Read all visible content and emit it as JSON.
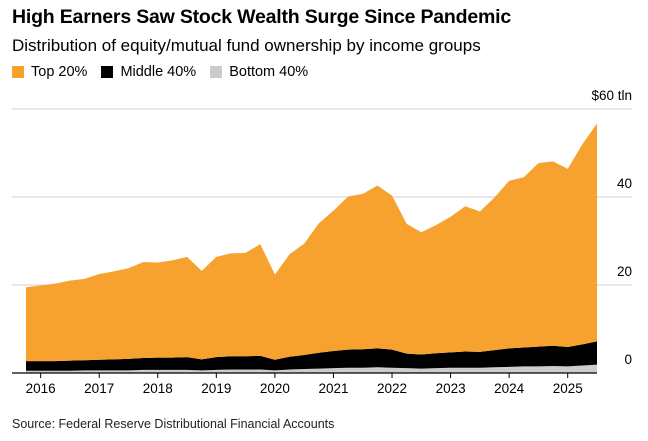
{
  "chart_data": {
    "type": "area",
    "stacked": true,
    "title": "High Earners Saw Stock Wealth Surge Since Pandemic",
    "subtitle": "Distribution of equity/mutual fund ownership by income groups",
    "source": "Source: Federal Reserve Distributional Financial Accounts",
    "y_unit_label": "$60 tln",
    "ylim": [
      0,
      60
    ],
    "y_ticks": [
      {
        "value": 0,
        "label": "0"
      },
      {
        "value": 20,
        "label": "20"
      },
      {
        "value": 40,
        "label": "40"
      },
      {
        "value": 60,
        "label": "$60 tln"
      }
    ],
    "x_ticks": [
      {
        "value": 2016,
        "label": "2016"
      },
      {
        "value": 2017,
        "label": "2017"
      },
      {
        "value": 2018,
        "label": "2018"
      },
      {
        "value": 2019,
        "label": "2019"
      },
      {
        "value": 2020,
        "label": "2020"
      },
      {
        "value": 2021,
        "label": "2021"
      },
      {
        "value": 2022,
        "label": "2022"
      },
      {
        "value": 2023,
        "label": "2023"
      },
      {
        "value": 2024,
        "label": "2024"
      },
      {
        "value": 2025,
        "label": "2025"
      }
    ],
    "xlim": [
      2015.5,
      2025.75
    ],
    "x": [
      2015.75,
      2016.0,
      2016.25,
      2016.5,
      2016.75,
      2017.0,
      2017.25,
      2017.5,
      2017.75,
      2018.0,
      2018.25,
      2018.5,
      2018.75,
      2019.0,
      2019.25,
      2019.5,
      2019.75,
      2020.0,
      2020.25,
      2020.5,
      2020.75,
      2021.0,
      2021.25,
      2021.5,
      2021.75,
      2022.0,
      2022.25,
      2022.5,
      2022.75,
      2023.0,
      2023.25,
      2023.5,
      2023.75,
      2024.0,
      2024.25,
      2024.5,
      2024.75,
      2025.0,
      2025.25,
      2025.5
    ],
    "series": [
      {
        "name": "Bottom 40%",
        "color": "#cccccc",
        "values": [
          0.5,
          0.5,
          0.5,
          0.5,
          0.6,
          0.6,
          0.6,
          0.6,
          0.7,
          0.7,
          0.7,
          0.7,
          0.6,
          0.7,
          0.8,
          0.8,
          0.8,
          0.6,
          0.8,
          0.9,
          1.0,
          1.1,
          1.2,
          1.2,
          1.3,
          1.2,
          1.1,
          1.0,
          1.1,
          1.2,
          1.2,
          1.2,
          1.3,
          1.4,
          1.5,
          1.5,
          1.6,
          1.5,
          1.7,
          1.9
        ]
      },
      {
        "name": "Middle 40%",
        "color": "#000000",
        "values": [
          2.2,
          2.2,
          2.2,
          2.3,
          2.3,
          2.4,
          2.5,
          2.6,
          2.7,
          2.8,
          2.8,
          2.9,
          2.5,
          2.9,
          3.0,
          3.0,
          3.1,
          2.4,
          2.9,
          3.2,
          3.6,
          3.9,
          4.1,
          4.2,
          4.3,
          4.1,
          3.3,
          3.2,
          3.4,
          3.5,
          3.7,
          3.6,
          3.9,
          4.2,
          4.3,
          4.5,
          4.6,
          4.4,
          4.8,
          5.3
        ]
      },
      {
        "name": "Top 20%",
        "color": "#f7a22f",
        "values": [
          16.8,
          17.2,
          17.6,
          18.2,
          18.5,
          19.5,
          20.0,
          20.6,
          21.8,
          21.6,
          22.1,
          22.8,
          20.1,
          22.8,
          23.4,
          23.5,
          25.4,
          19.4,
          23.3,
          25.3,
          29.4,
          31.9,
          34.8,
          35.3,
          37.0,
          35.0,
          29.5,
          27.8,
          29.1,
          30.8,
          33.0,
          31.9,
          34.7,
          38.1,
          38.7,
          41.7,
          41.9,
          40.5,
          45.5,
          49.5
        ]
      }
    ]
  }
}
